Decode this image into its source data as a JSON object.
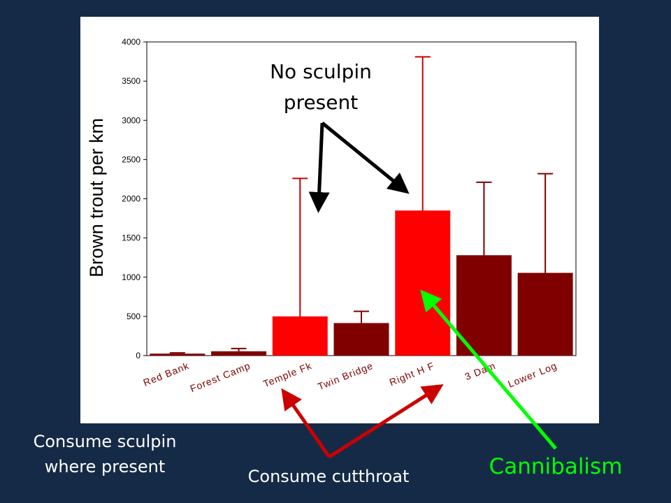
{
  "chart_data": {
    "type": "bar",
    "ylabel": "Brown trout per km",
    "ylim": [
      0,
      4000
    ],
    "yticks": [
      0,
      500,
      1000,
      1500,
      2000,
      2500,
      3000,
      3500,
      4000
    ],
    "categories": [
      "Red Bank",
      "Forest Camp",
      "Temple Fk",
      "Twin Bridge",
      "Right H F",
      "3 Dam",
      "Lower Log"
    ],
    "values": [
      25,
      55,
      500,
      415,
      1850,
      1280,
      1055
    ],
    "error_upper": [
      35,
      90,
      2260,
      565,
      3810,
      2210,
      2320
    ],
    "bar_colors": [
      "#800000",
      "#800000",
      "#ff0000",
      "#800000",
      "#ff0000",
      "#800000",
      "#800000"
    ],
    "error_colors": [
      "#800000",
      "#800000",
      "#cc0000",
      "#800000",
      "#cc0000",
      "#800000",
      "#800000"
    ],
    "grid": false,
    "plot_background": "#ffffff"
  },
  "annotations": {
    "no_sculpin_line1": "No sculpin",
    "no_sculpin_line2": "present",
    "consume_sculpin_line1": "Consume sculpin",
    "consume_sculpin_line2": "where present",
    "consume_cutthroat": "Consume cutthroat",
    "cannibalism": "Cannibalism"
  },
  "colors": {
    "slide_background": "#152a47",
    "black_arrow": "#000000",
    "red_arrow": "#cc0000",
    "green_arrow": "#00ff00",
    "caption_text": "#ffffff",
    "cannibalism_text": "#00ff00"
  }
}
